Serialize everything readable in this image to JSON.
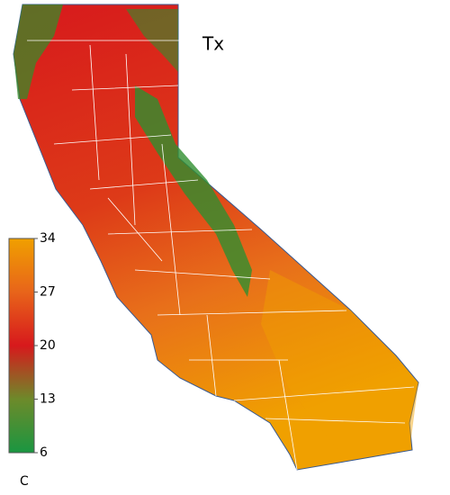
{
  "map": {
    "title": "Tx",
    "colorbar": {
      "range": [
        6,
        34
      ],
      "ticks": [
        34,
        27,
        20,
        13,
        6
      ],
      "unit": "C",
      "colors": [
        "#1a9641",
        "#6d8a2a",
        "#d7191c",
        "#e8641a",
        "#f0a000"
      ]
    }
  }
}
